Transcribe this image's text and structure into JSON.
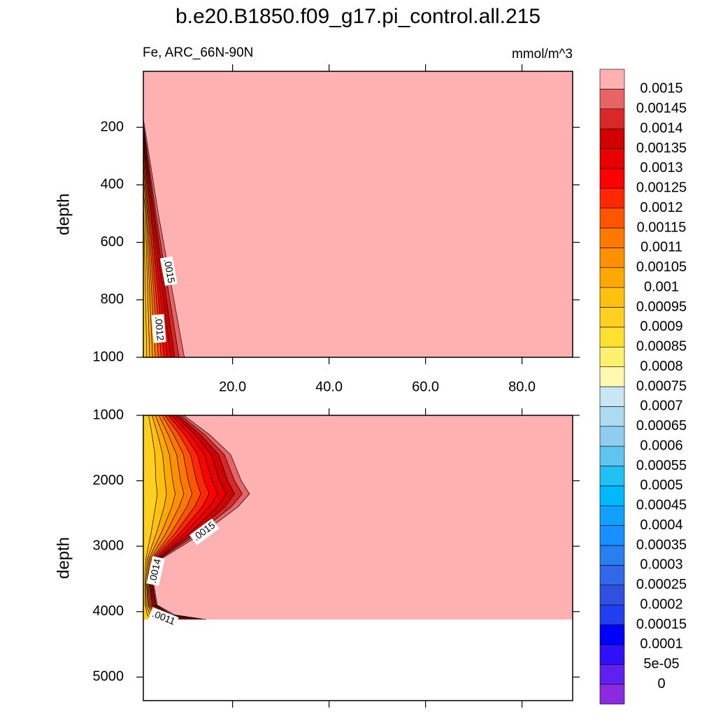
{
  "chart_data": [
    {
      "type": "contour",
      "title": "b.e20.B1850.f09_g17.pi_control.all.215",
      "subtitle": "Fe, ARC_66N-90N",
      "units": "mmol/m^3",
      "ylabel": "depth",
      "xlim": [
        1.5,
        90.5
      ],
      "ylim": [
        5,
        1000
      ],
      "xticks": [
        {
          "value": 20,
          "label": "20.0"
        },
        {
          "value": 40,
          "label": "40.0"
        },
        {
          "value": 60,
          "label": "60.0"
        },
        {
          "value": 80,
          "label": "80.0"
        }
      ],
      "yticks": [
        200,
        400,
        600,
        800,
        1000
      ],
      "contours": [
        {
          "level": 0.0015,
          "label": ".0015",
          "x": [
            1.5,
            4.6,
            10.0
          ],
          "y": [
            170,
            500,
            1000
          ]
        },
        {
          "level": 0.00145,
          "x": [
            1.5,
            4.1,
            8.9
          ],
          "y": [
            185,
            500,
            1000
          ]
        },
        {
          "level": 0.0014,
          "x": [
            1.5,
            3.8,
            8.0
          ],
          "y": [
            200,
            500,
            1000
          ]
        },
        {
          "level": 0.00135,
          "x": [
            1.5,
            3.5,
            7.2
          ],
          "y": [
            215,
            500,
            1000
          ]
        },
        {
          "level": 0.0013,
          "x": [
            1.5,
            3.2,
            6.5
          ],
          "y": [
            230,
            500,
            1000
          ]
        },
        {
          "level": 0.00125,
          "x": [
            1.5,
            3.0,
            5.8
          ],
          "y": [
            250,
            500,
            1000
          ]
        },
        {
          "level": 0.0012,
          "label": ".0012",
          "x": [
            1.5,
            2.7,
            5.2
          ],
          "y": [
            270,
            500,
            1000
          ]
        },
        {
          "level": 0.00115,
          "x": [
            1.5,
            2.5,
            4.6
          ],
          "y": [
            300,
            500,
            1000
          ]
        },
        {
          "level": 0.0011,
          "x": [
            1.5,
            2.3,
            4.0
          ],
          "y": [
            330,
            500,
            1000
          ]
        },
        {
          "level": 0.00105,
          "x": [
            1.5,
            2.1,
            3.4
          ],
          "y": [
            370,
            500,
            1000
          ]
        },
        {
          "level": 0.001,
          "x": [
            1.5,
            1.9,
            2.8
          ],
          "y": [
            420,
            500,
            1000
          ]
        },
        {
          "level": 0.00095,
          "x": [
            1.5,
            1.6,
            2.2
          ],
          "y": [
            480,
            500,
            1000
          ]
        }
      ]
    },
    {
      "type": "contour",
      "ylabel": "depth",
      "xlim": [
        1.5,
        90.5
      ],
      "ylim": [
        1000,
        5360
      ],
      "yticks": [
        1000,
        2000,
        3000,
        4000,
        5000
      ],
      "fill_depth": 4120,
      "contours": [
        {
          "level": 0.0015,
          "label": ".0015",
          "x": [
            9.9,
            15.3,
            19.6,
            21.8,
            23.5,
            21.1,
            13.8,
            5.1,
            3.7,
            4.4,
            8.0,
            14.5
          ],
          "y": [
            1000,
            1300,
            1600,
            2000,
            2200,
            2400,
            2800,
            3200,
            3600,
            3900,
            4050,
            4120
          ]
        },
        {
          "level": 0.00145,
          "x": [
            9.3,
            14.3,
            18.3,
            20.4,
            22.0,
            19.7,
            12.9,
            4.8,
            3.5,
            4.2,
            7.5,
            13.6
          ],
          "y": [
            1000,
            1300,
            1600,
            2000,
            2200,
            2400,
            2800,
            3200,
            3600,
            3900,
            4050,
            4120
          ]
        },
        {
          "level": 0.0014,
          "label": ".0014",
          "x": [
            8.7,
            13.4,
            17.1,
            19.0,
            20.4,
            18.4,
            12.1,
            4.6,
            3.4,
            4.0,
            7.1,
            12.7
          ],
          "y": [
            1000,
            1300,
            1600,
            2000,
            2200,
            2400,
            2800,
            3200,
            3600,
            3900,
            4050,
            4120
          ]
        },
        {
          "level": 0.00135,
          "x": [
            8.1,
            12.3,
            15.6,
            17.3,
            18.7,
            16.8,
            11.1,
            4.3,
            3.2,
            3.8,
            6.6,
            11.6
          ],
          "y": [
            1000,
            1300,
            1600,
            2000,
            2200,
            2400,
            2800,
            3200,
            3600,
            3900,
            4050,
            4120
          ]
        },
        {
          "level": 0.0013,
          "x": [
            7.4,
            11.2,
            14.2,
            15.7,
            16.9,
            15.2,
            10.1,
            4.0,
            3.0,
            3.5,
            6.1,
            10.6
          ],
          "y": [
            1000,
            1300,
            1600,
            2000,
            2200,
            2400,
            2800,
            3200,
            3600,
            3900,
            4050,
            4120
          ]
        },
        {
          "level": 0.00125,
          "x": [
            6.7,
            10.1,
            12.7,
            14.1,
            15.1,
            13.7,
            9.1,
            3.7,
            2.9,
            3.3,
            5.5,
            9.6
          ],
          "y": [
            1000,
            1300,
            1600,
            2000,
            2200,
            2400,
            2800,
            3200,
            3600,
            3900,
            4050,
            4120
          ]
        },
        {
          "level": 0.0012,
          "x": [
            6.0,
            9.0,
            11.3,
            12.5,
            13.4,
            12.1,
            8.1,
            3.4,
            2.7,
            3.1,
            5.0,
            8.5
          ],
          "y": [
            1000,
            1300,
            1600,
            2000,
            2200,
            2400,
            2800,
            3200,
            3600,
            3900,
            4050,
            4120
          ]
        },
        {
          "level": 0.00115,
          "x": [
            5.4,
            7.8,
            9.8,
            10.8,
            11.6,
            10.5,
            7.2,
            3.2,
            2.5,
            2.8,
            4.5,
            7.5
          ],
          "y": [
            1000,
            1300,
            1600,
            2000,
            2200,
            2400,
            2800,
            3200,
            3600,
            3900,
            4050,
            4120
          ]
        },
        {
          "level": 0.0011,
          "label": ".0011",
          "x": [
            4.7,
            6.7,
            8.4,
            9.2,
            9.9,
            8.9,
            6.2,
            2.9,
            2.3,
            2.6,
            4.0,
            6.4
          ],
          "y": [
            1000,
            1300,
            1600,
            2000,
            2200,
            2400,
            2800,
            3200,
            3600,
            3900,
            4050,
            4120
          ]
        },
        {
          "level": 0.00105,
          "x": [
            4.0,
            5.6,
            6.9,
            7.6,
            8.1,
            7.4,
            5.2,
            2.6,
            2.2,
            2.4,
            3.5,
            5.4
          ],
          "y": [
            1000,
            1300,
            1600,
            2000,
            2200,
            2400,
            2800,
            3200,
            3600,
            3900,
            4050,
            4120
          ]
        },
        {
          "level": 0.001,
          "x": [
            3.3,
            4.5,
            5.5,
            6.0,
            6.3,
            5.8,
            4.2,
            2.3,
            2.0,
            2.1,
            2.9,
            4.4
          ],
          "y": [
            1000,
            1300,
            1600,
            2000,
            2200,
            2400,
            2800,
            3200,
            3600,
            3900,
            4050,
            4120
          ]
        },
        {
          "level": 0.00095,
          "x": [
            2.6,
            3.3,
            3.9,
            4.1,
            4.4,
            4.0,
            3.1,
            2.0,
            1.8,
            1.9,
            2.3,
            3.2
          ],
          "y": [
            1000,
            1300,
            1600,
            2000,
            2200,
            2400,
            2800,
            3200,
            3600,
            3900,
            4050,
            4120
          ]
        }
      ]
    }
  ],
  "colorbar": {
    "levels": [
      0,
      {
        "value": 5e-05,
        "label": "5e-05"
      },
      0.0001,
      0.00015,
      0.0002,
      0.00025,
      0.0003,
      0.00035,
      0.0004,
      0.00045,
      0.0005,
      0.00055,
      0.0006,
      0.00065,
      0.0007,
      0.00075,
      0.0008,
      0.00085,
      0.0009,
      0.00095,
      0.001,
      0.00105,
      0.0011,
      0.00115,
      0.0012,
      0.00125,
      0.0013,
      0.00135,
      0.0014,
      0.00145,
      0.0015
    ],
    "colors": [
      "#8a2be2",
      "#6020f0",
      "#3010f8",
      "#0000ff",
      "#2040f0",
      "#3050e0",
      "#3068e8",
      "#2880f0",
      "#1890ff",
      "#10a0ff",
      "#00b8ff",
      "#20c0f4",
      "#60c4f0",
      "#90ccf0",
      "#acdaf0",
      "#c8e6f4",
      "#fff8b0",
      "#fff070",
      "#ffe030",
      "#ffd020",
      "#ffc010",
      "#ffa800",
      "#ff9000",
      "#ff7800",
      "#ff5500",
      "#ff2800",
      "#ff0000",
      "#e80000",
      "#d00000",
      "#d82828",
      "#e86464",
      "#ffb0b0"
    ]
  }
}
